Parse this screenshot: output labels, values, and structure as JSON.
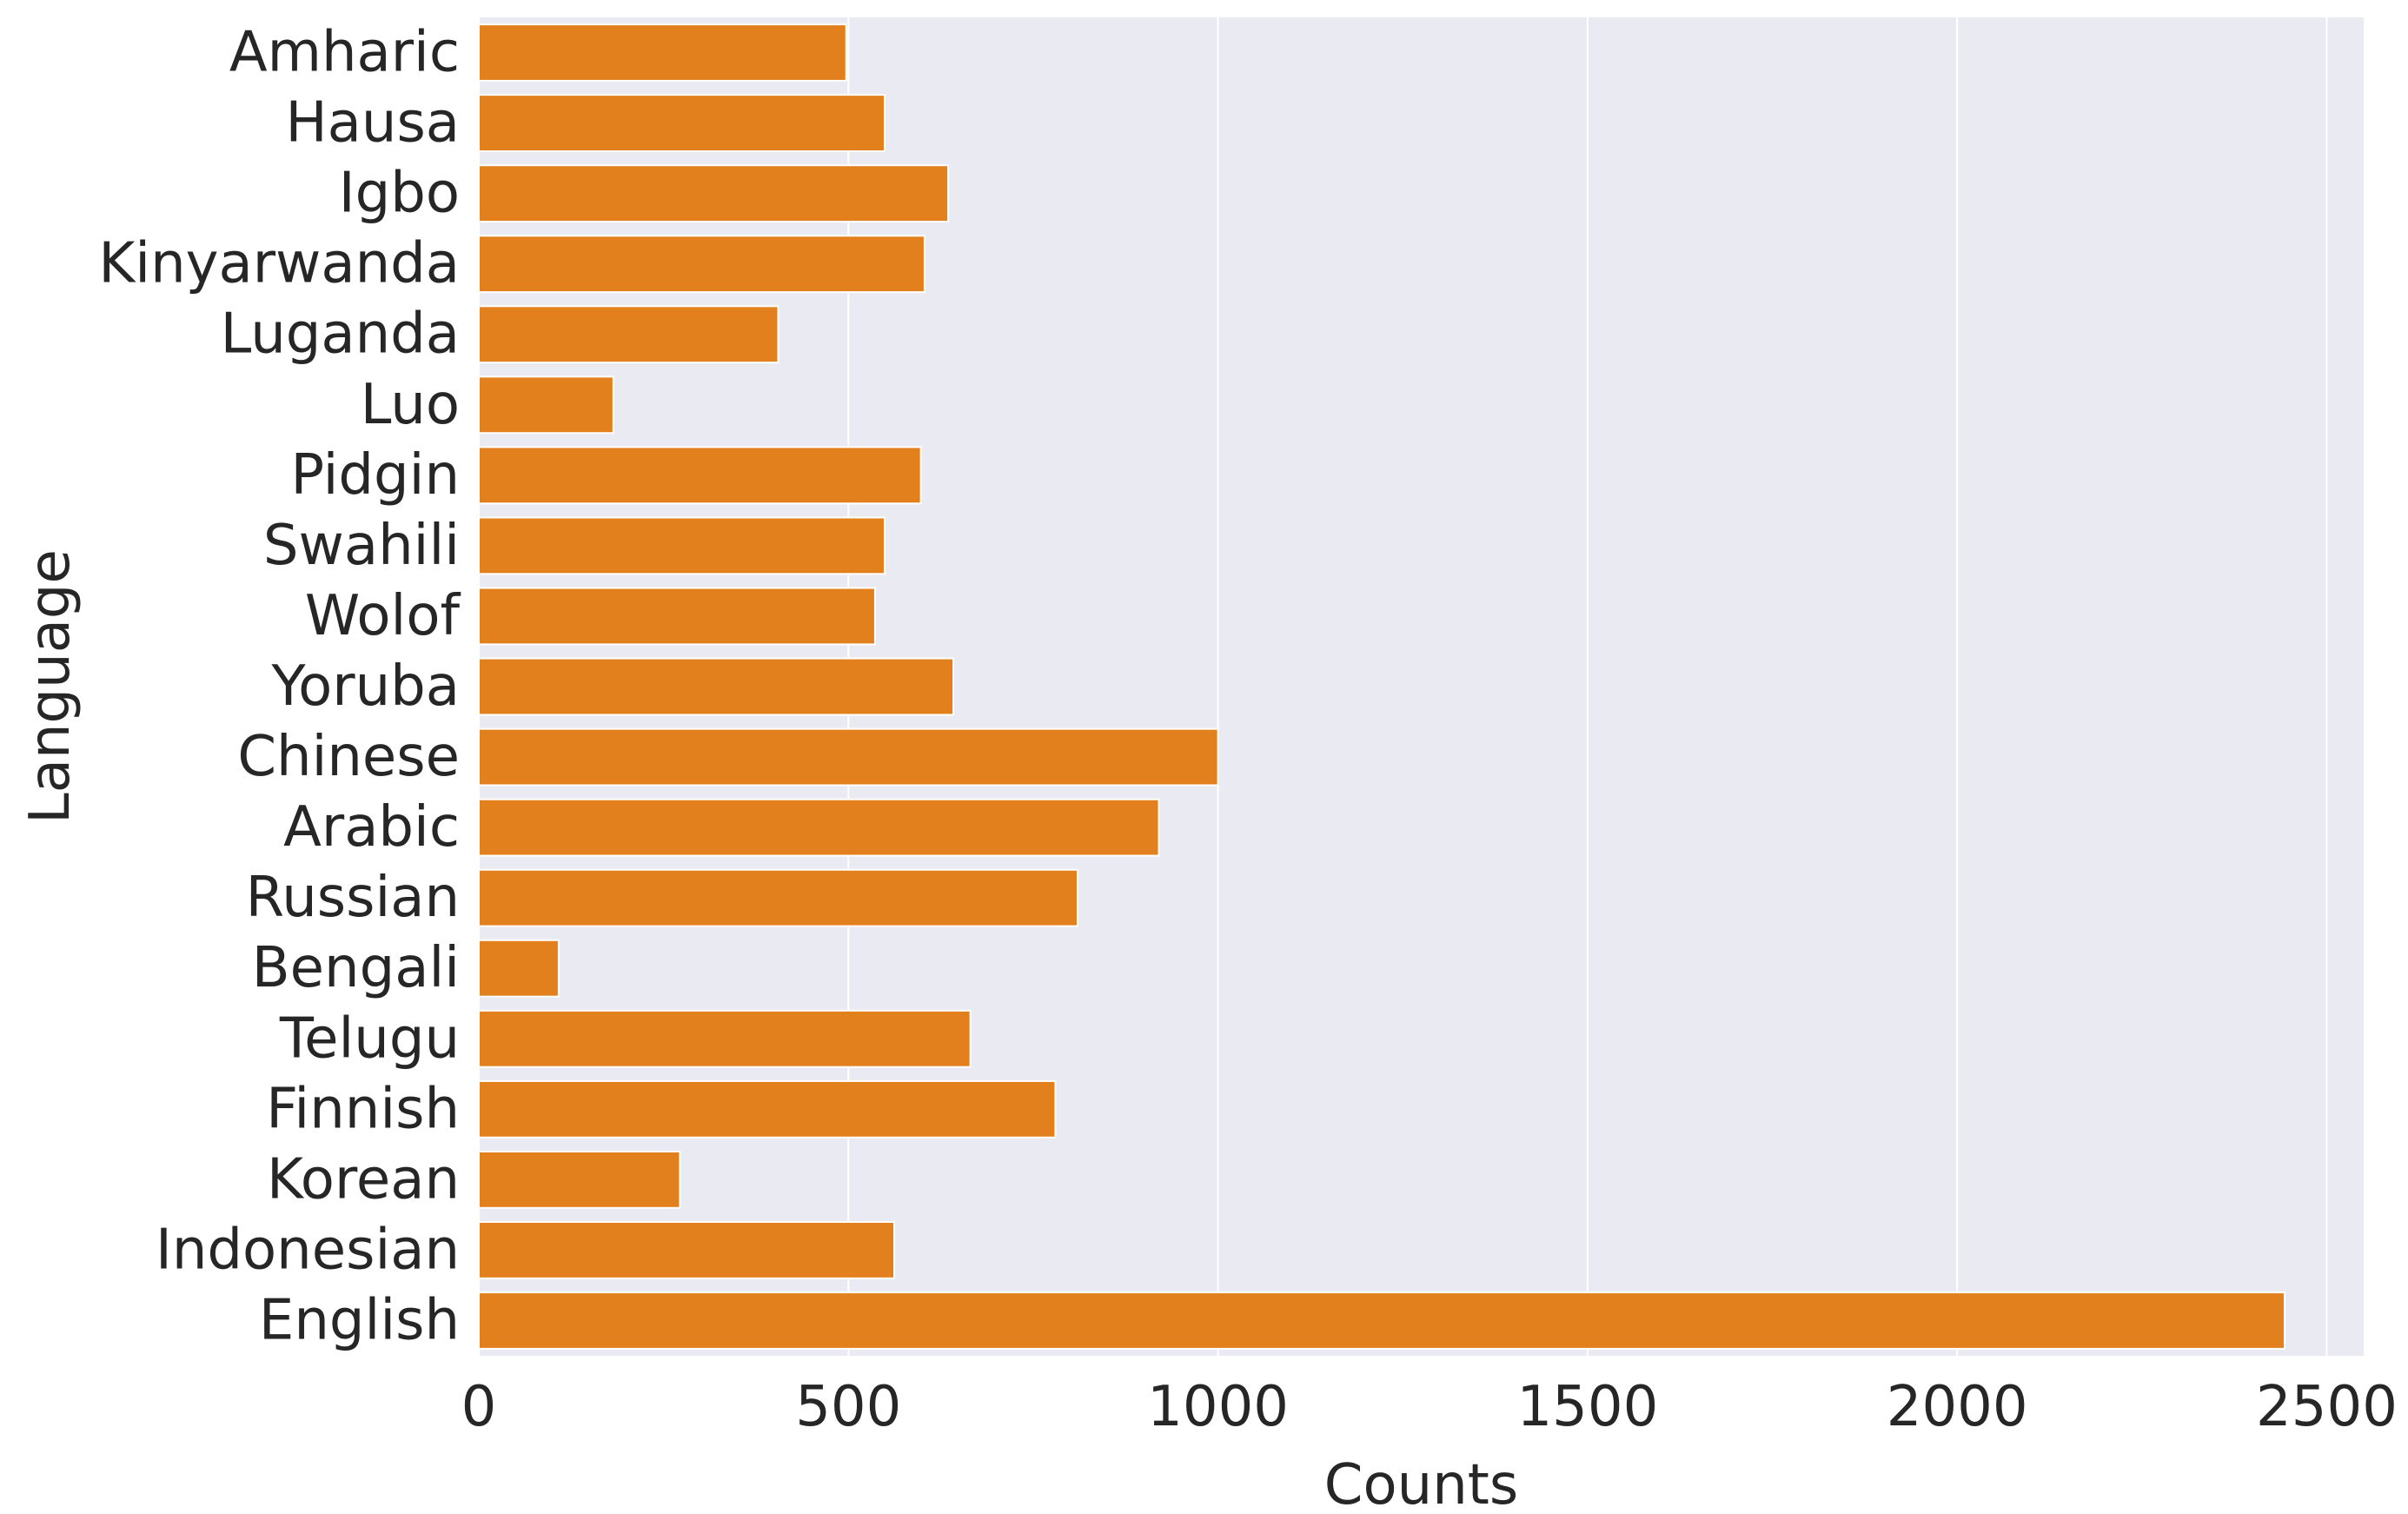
{
  "chart_data": {
    "type": "bar",
    "orientation": "horizontal",
    "title": "",
    "xlabel": "Counts",
    "ylabel": "Language",
    "xlim": [
      0,
      2550
    ],
    "xticks": [
      0,
      500,
      1000,
      1500,
      2000,
      2500
    ],
    "grid": true,
    "bar_color": "#e1801d",
    "background_color": "#eaeaf2",
    "categories": [
      "Amharic",
      "Hausa",
      "Igbo",
      "Kinyarwanda",
      "Luganda",
      "Luo",
      "Pidgin",
      "Swahili",
      "Wolof",
      "Yoruba",
      "Chinese",
      "Arabic",
      "Russian",
      "Bengali",
      "Telugu",
      "Finnish",
      "Korean",
      "Indonesian",
      "English"
    ],
    "values": [
      497,
      549,
      635,
      603,
      405,
      182,
      598,
      549,
      536,
      642,
      1000,
      920,
      810,
      108,
      665,
      780,
      272,
      562,
      2443
    ]
  }
}
